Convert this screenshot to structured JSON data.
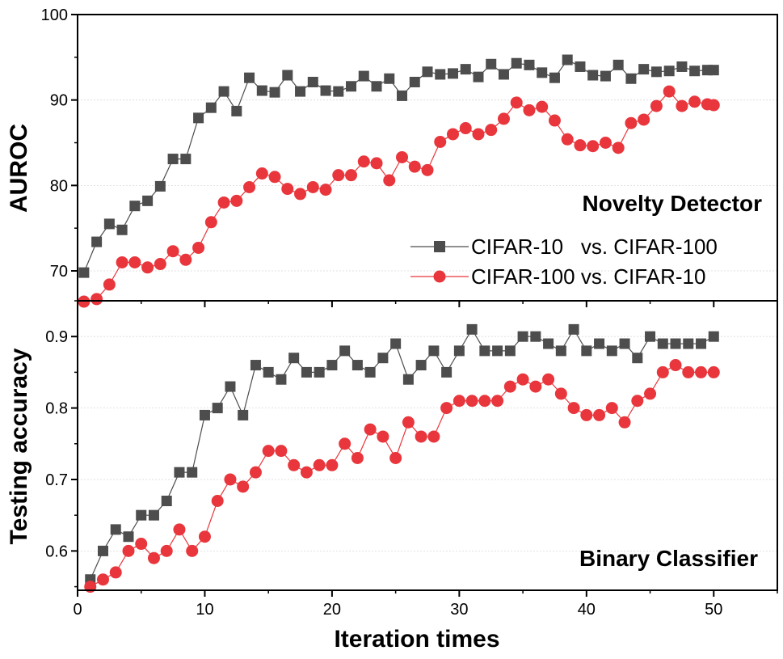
{
  "chart_data": [
    {
      "type": "line",
      "panel_label": "Novelty Detector",
      "ylabel": "AUROC",
      "xlabel": "",
      "xlim": [
        0,
        55
      ],
      "ylim": [
        66.5,
        100
      ],
      "x_ticks": [
        0,
        10,
        20,
        30,
        40,
        50
      ],
      "y_ticks": [
        70,
        80,
        90,
        100
      ],
      "grid": true,
      "legend_position": "lower-right",
      "colors": [
        "#4d4d4d",
        "#e8363c"
      ],
      "series": [
        {
          "name": "CIFAR-10   vs. CIFAR-100",
          "marker": "square",
          "x": [
            0.5,
            1.5,
            2.5,
            3.5,
            4.5,
            5.5,
            6.5,
            7.5,
            8.5,
            9.5,
            10.5,
            11.5,
            12.5,
            13.5,
            14.5,
            15.5,
            16.5,
            17.5,
            18.5,
            19.5,
            20.5,
            21.5,
            22.5,
            23.5,
            24.5,
            25.5,
            26.5,
            27.5,
            28.5,
            29.5,
            30.5,
            31.5,
            32.5,
            33.5,
            34.5,
            35.5,
            36.5,
            37.5,
            38.5,
            39.5,
            40.5,
            41.5,
            42.5,
            43.5,
            44.5,
            45.5,
            46.5,
            47.5,
            48.5,
            49.5,
            50.0
          ],
          "values": [
            69.8,
            73.4,
            75.5,
            74.8,
            77.6,
            78.2,
            79.9,
            83.1,
            83.1,
            87.9,
            89.1,
            91.0,
            88.7,
            92.6,
            91.1,
            90.9,
            92.9,
            91.0,
            92.1,
            91.1,
            91.0,
            91.6,
            92.8,
            91.6,
            92.5,
            90.5,
            92.1,
            93.3,
            93.0,
            93.1,
            93.6,
            92.7,
            94.2,
            93.0,
            94.3,
            94.1,
            93.2,
            92.6,
            94.7,
            93.9,
            92.9,
            92.8,
            94.1,
            92.5,
            93.6,
            93.3,
            93.4,
            93.9,
            93.4,
            93.5,
            93.5
          ]
        },
        {
          "name": "CIFAR-100 vs. CIFAR-10",
          "marker": "circle",
          "x": [
            0.5,
            1.5,
            2.5,
            3.5,
            4.5,
            5.5,
            6.5,
            7.5,
            8.5,
            9.5,
            10.5,
            11.5,
            12.5,
            13.5,
            14.5,
            15.5,
            16.5,
            17.5,
            18.5,
            19.5,
            20.5,
            21.5,
            22.5,
            23.5,
            24.5,
            25.5,
            26.5,
            27.5,
            28.5,
            29.5,
            30.5,
            31.5,
            32.5,
            33.5,
            34.5,
            35.5,
            36.5,
            37.5,
            38.5,
            39.5,
            40.5,
            41.5,
            42.5,
            43.5,
            44.5,
            45.5,
            46.5,
            47.5,
            48.5,
            49.5,
            50.0
          ],
          "values": [
            66.4,
            66.7,
            68.4,
            71.0,
            71.0,
            70.4,
            70.8,
            72.3,
            71.3,
            72.7,
            75.7,
            78.0,
            78.2,
            79.8,
            81.4,
            81.0,
            79.6,
            79.0,
            79.8,
            79.5,
            81.2,
            81.2,
            82.8,
            82.6,
            80.6,
            83.3,
            82.2,
            81.8,
            85.1,
            86.0,
            86.7,
            86.0,
            86.5,
            87.8,
            89.7,
            88.8,
            89.2,
            87.6,
            85.4,
            84.7,
            84.6,
            85.0,
            84.4,
            87.3,
            87.7,
            89.3,
            91.0,
            89.3,
            89.8,
            89.5,
            89.4
          ]
        }
      ]
    },
    {
      "type": "line",
      "panel_label": "Binary Classifier",
      "ylabel": "Testing accuracy",
      "xlabel": "Iteration times",
      "xlim": [
        0,
        55
      ],
      "ylim": [
        0.545,
        0.95
      ],
      "x_ticks": [
        0,
        10,
        20,
        30,
        40,
        50
      ],
      "y_ticks": [
        0.6,
        0.7,
        0.8,
        0.9
      ],
      "grid": true,
      "colors": [
        "#4d4d4d",
        "#e8363c"
      ],
      "series": [
        {
          "name": "",
          "marker": "square",
          "x": [
            1,
            2,
            3,
            4,
            5,
            6,
            7,
            8,
            9,
            10,
            11,
            12,
            13,
            14,
            15,
            16,
            17,
            18,
            19,
            20,
            21,
            22,
            23,
            24,
            25,
            26,
            27,
            28,
            29,
            30,
            31,
            32,
            33,
            34,
            35,
            36,
            37,
            38,
            39,
            40,
            41,
            42,
            43,
            44,
            45,
            46,
            47,
            48,
            49,
            50
          ],
          "values": [
            0.56,
            0.6,
            0.63,
            0.62,
            0.65,
            0.65,
            0.67,
            0.71,
            0.71,
            0.79,
            0.8,
            0.83,
            0.79,
            0.86,
            0.85,
            0.84,
            0.87,
            0.85,
            0.85,
            0.86,
            0.88,
            0.86,
            0.85,
            0.87,
            0.89,
            0.84,
            0.86,
            0.88,
            0.85,
            0.88,
            0.91,
            0.88,
            0.88,
            0.88,
            0.9,
            0.9,
            0.89,
            0.88,
            0.91,
            0.88,
            0.89,
            0.88,
            0.89,
            0.87,
            0.9,
            0.89,
            0.89,
            0.89,
            0.89,
            0.9
          ]
        },
        {
          "name": "",
          "marker": "circle",
          "x": [
            1,
            2,
            3,
            4,
            5,
            6,
            7,
            8,
            9,
            10,
            11,
            12,
            13,
            14,
            15,
            16,
            17,
            18,
            19,
            20,
            21,
            22,
            23,
            24,
            25,
            26,
            27,
            28,
            29,
            30,
            31,
            32,
            33,
            34,
            35,
            36,
            37,
            38,
            39,
            40,
            41,
            42,
            43,
            44,
            45,
            46,
            47,
            48,
            49,
            50
          ],
          "values": [
            0.55,
            0.56,
            0.57,
            0.6,
            0.61,
            0.59,
            0.6,
            0.63,
            0.6,
            0.62,
            0.67,
            0.7,
            0.69,
            0.71,
            0.74,
            0.74,
            0.72,
            0.71,
            0.72,
            0.72,
            0.75,
            0.73,
            0.77,
            0.76,
            0.73,
            0.78,
            0.76,
            0.76,
            0.8,
            0.81,
            0.81,
            0.81,
            0.81,
            0.83,
            0.84,
            0.83,
            0.84,
            0.82,
            0.8,
            0.79,
            0.79,
            0.8,
            0.78,
            0.81,
            0.82,
            0.85,
            0.86,
            0.85,
            0.85,
            0.85
          ]
        }
      ]
    }
  ]
}
